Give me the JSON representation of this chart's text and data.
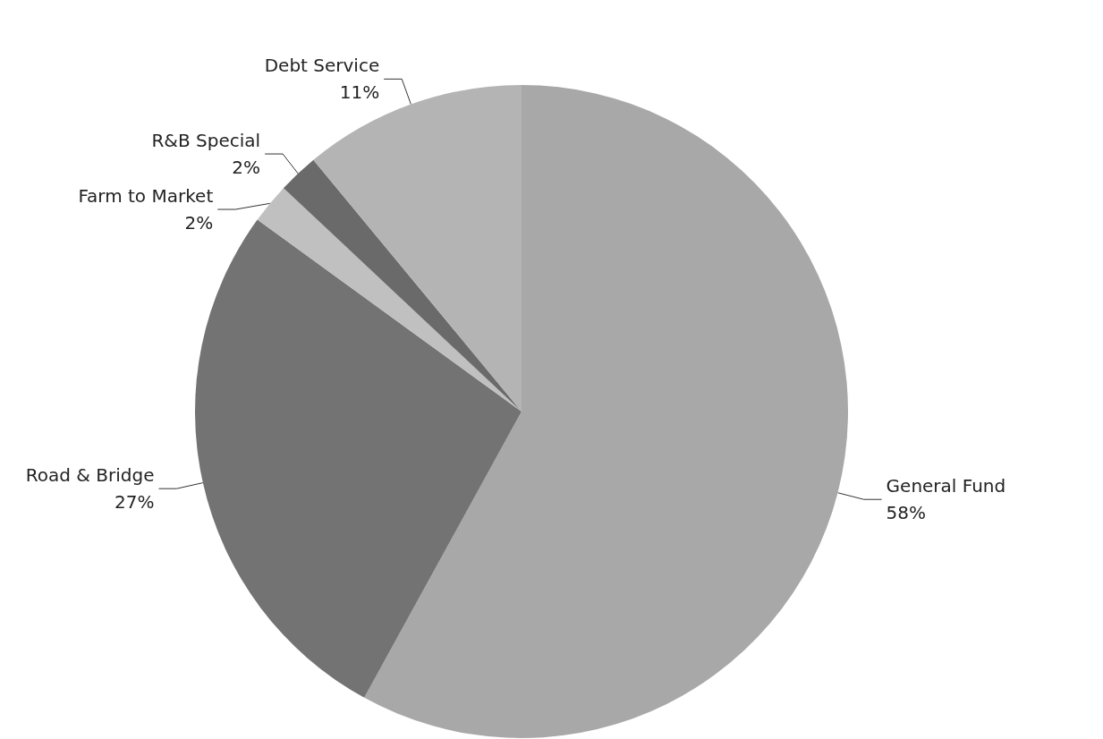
{
  "chart_data": {
    "type": "pie",
    "categories": [
      "General Fund",
      "Road & Bridge",
      "Farm to Market",
      "R&B Special",
      "Debt Service"
    ],
    "values": [
      58,
      27,
      2,
      2,
      11
    ],
    "colors": [
      "#a8a8a8",
      "#737373",
      "#c0c0c0",
      "#6a6a6a",
      "#b4b4b4"
    ],
    "value_labels": [
      "58%",
      "27%",
      "2%",
      "2%",
      "11%"
    ],
    "legend": false
  }
}
